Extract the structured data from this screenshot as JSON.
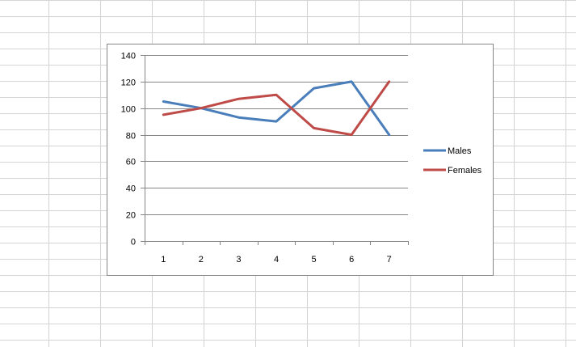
{
  "chart_data": {
    "type": "line",
    "x": [
      1,
      2,
      3,
      4,
      5,
      6,
      7
    ],
    "categories": [
      "1",
      "2",
      "3",
      "4",
      "5",
      "6",
      "7"
    ],
    "ylim": [
      0,
      140
    ],
    "yticks": [
      0,
      20,
      40,
      60,
      80,
      100,
      120,
      140
    ],
    "ytick_labels": [
      "0",
      "20",
      "40",
      "60",
      "80",
      "100",
      "120",
      "140"
    ],
    "grid": true,
    "legend_position": "right",
    "series": [
      {
        "name": "Males",
        "color": "#4a7ebb",
        "values": [
          105,
          100,
          93,
          90,
          115,
          120,
          80
        ]
      },
      {
        "name": "Females",
        "color": "#be4b48",
        "values": [
          95,
          100,
          107,
          110,
          85,
          80,
          120
        ]
      }
    ]
  }
}
